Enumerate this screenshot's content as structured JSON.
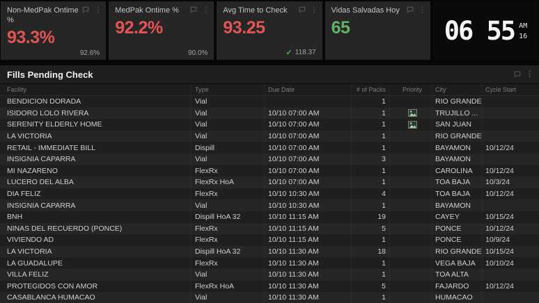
{
  "cards": [
    {
      "title": "Non-MedPak Ontime %",
      "value": "93.3%",
      "sub": "92.6%",
      "value_color": "#e25555"
    },
    {
      "title": "MedPak Ontime %",
      "value": "92.2%",
      "sub": "90.0%",
      "value_color": "#e25555"
    },
    {
      "title": "Avg Time to Check",
      "value": "93.25",
      "sub": "118.37",
      "sub_check": "✓",
      "value_color": "#e25555"
    },
    {
      "title": "Vidas Salvadas Hoy",
      "value": "65",
      "sub": "",
      "value_color": "#5cb567"
    }
  ],
  "clock": {
    "time": "06 55",
    "meridiem": "AM",
    "seconds": "16"
  },
  "panel": {
    "title": "Fills Pending Check"
  },
  "icons": {
    "card_action_1": "comment-icon",
    "card_action_2": "menu-icon",
    "menu_glyph": "⋮",
    "priority_icon": "image-placeholder-icon",
    "check_glyph": "✓"
  },
  "colors": {
    "negative": "#e25555",
    "positive": "#5cb567",
    "check_green": "#4caf50",
    "card_bg": "#262626",
    "table_bg": "#1f1f1f"
  },
  "table": {
    "columns": [
      "Facility",
      "Type",
      "Due Date",
      "# of Packs",
      "Priority",
      "City",
      "Cycle Start"
    ],
    "rows": [
      {
        "facility": "BENDICION DORADA",
        "type": "Vial",
        "due": "",
        "packs": "1",
        "priority": false,
        "city": "RIO GRANDE",
        "cycle": ""
      },
      {
        "facility": "ISIDORO LOLO RIVERA",
        "type": "Vial",
        "due": "10/10 07:00 AM",
        "packs": "1",
        "priority": true,
        "city": "TRUJILLO ...",
        "cycle": ""
      },
      {
        "facility": "SERENITY ELDERLY HOME",
        "type": "Vial",
        "due": "10/10 07:00 AM",
        "packs": "1",
        "priority": true,
        "city": "SAN JUAN",
        "cycle": ""
      },
      {
        "facility": "LA VICTORIA",
        "type": "Vial",
        "due": "10/10 07:00 AM",
        "packs": "1",
        "priority": false,
        "city": "RIO GRANDE",
        "cycle": ""
      },
      {
        "facility": "RETAIL - IMMEDIATE BILL",
        "type": "Dispill",
        "due": "10/10 07:00 AM",
        "packs": "1",
        "priority": false,
        "city": "BAYAMON",
        "cycle": "10/12/24"
      },
      {
        "facility": "INSIGNIA CAPARRA",
        "type": "Vial",
        "due": "10/10 07:00 AM",
        "packs": "3",
        "priority": false,
        "city": "BAYAMON",
        "cycle": ""
      },
      {
        "facility": "MI NAZARENO",
        "type": "FlexRx",
        "due": "10/10 07:00 AM",
        "packs": "1",
        "priority": false,
        "city": "CAROLINA",
        "cycle": "10/12/24"
      },
      {
        "facility": "LUCERO DEL ALBA",
        "type": "FlexRx HoA",
        "due": "10/10 07:00 AM",
        "packs": "1",
        "priority": false,
        "city": "TOA BAJA",
        "cycle": "10/3/24"
      },
      {
        "facility": "DIA FELIZ",
        "type": "FlexRx",
        "due": "10/10 10:30 AM",
        "packs": "4",
        "priority": false,
        "city": "TOA BAJA",
        "cycle": "10/12/24"
      },
      {
        "facility": "INSIGNIA CAPARRA",
        "type": "Vial",
        "due": "10/10 10:30 AM",
        "packs": "1",
        "priority": false,
        "city": "BAYAMON",
        "cycle": ""
      },
      {
        "facility": "BNH",
        "type": "Dispill HoA 32",
        "due": "10/10 11:15 AM",
        "packs": "19",
        "priority": false,
        "city": "CAYEY",
        "cycle": "10/15/24"
      },
      {
        "facility": "NINAS DEL RECUERDO (PONCE)",
        "type": "FlexRx",
        "due": "10/10 11:15 AM",
        "packs": "5",
        "priority": false,
        "city": "PONCE",
        "cycle": "10/12/24"
      },
      {
        "facility": "VIVIENDO AD",
        "type": "FlexRx",
        "due": "10/10 11:15 AM",
        "packs": "1",
        "priority": false,
        "city": "PONCE",
        "cycle": "10/9/24"
      },
      {
        "facility": "LA VICTORIA",
        "type": "Dispill HoA 32",
        "due": "10/10 11:30 AM",
        "packs": "18",
        "priority": false,
        "city": "RIO GRANDE",
        "cycle": "10/15/24"
      },
      {
        "facility": "LA GUADALUPE",
        "type": "FlexRx",
        "due": "10/10 11:30 AM",
        "packs": "1",
        "priority": false,
        "city": "VEGA BAJA",
        "cycle": "10/10/24"
      },
      {
        "facility": "VILLA FELIZ",
        "type": "Vial",
        "due": "10/10 11:30 AM",
        "packs": "1",
        "priority": false,
        "city": "TOA ALTA",
        "cycle": ""
      },
      {
        "facility": "PROTEGIDOS CON AMOR",
        "type": "FlexRx HoA",
        "due": "10/10 11:30 AM",
        "packs": "5",
        "priority": false,
        "city": "FAJARDO",
        "cycle": "10/12/24"
      },
      {
        "facility": "CASABLANCA HUMACAO",
        "type": "Vial",
        "due": "10/10 11:30 AM",
        "packs": "1",
        "priority": false,
        "city": "HUMACAO",
        "cycle": ""
      }
    ]
  }
}
